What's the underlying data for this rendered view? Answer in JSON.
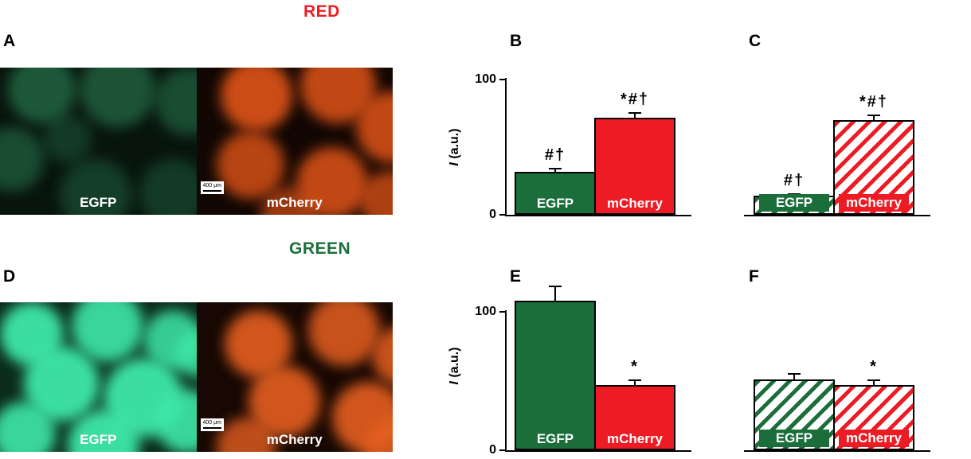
{
  "figure": {
    "title_red": "RED",
    "title_green": "GREEN",
    "panel_labels": [
      "A",
      "B",
      "C",
      "D",
      "E",
      "F"
    ],
    "colors": {
      "egfp_green": "#1b6e3a",
      "mcherry_red": "#ed1c24",
      "red_title": "#ed1c24",
      "green_title": "#1b6e3a"
    }
  },
  "microscopy": {
    "panel_a": {
      "left_label": "EGFP",
      "right_label": "mCherry",
      "scale_bar": "400 μm"
    },
    "panel_d": {
      "left_label": "EGFP",
      "right_label": "mCherry",
      "scale_bar": "400 μm"
    }
  },
  "chart_data": [
    {
      "id": "B",
      "type": "bar",
      "categories": [
        "EGFP",
        "mCherry"
      ],
      "values": [
        32,
        72
      ],
      "errors": [
        3,
        4
      ],
      "annotations": [
        "#†",
        "*#†"
      ],
      "ylabel_var": "I",
      "ylabel_unit": "(a.u.)",
      "yticks": [
        0,
        100
      ],
      "ylim": [
        0,
        100
      ],
      "bar_styles": [
        "solid-green",
        "solid-red"
      ],
      "legend_position": "none",
      "grid": false
    },
    {
      "id": "C",
      "type": "bar",
      "categories": [
        "EGFP",
        "mCherry"
      ],
      "values": [
        14,
        70
      ],
      "errors": [
        2,
        4
      ],
      "annotations": [
        "#†",
        "*#†"
      ],
      "ylabel_var": "",
      "ylabel_unit": "",
      "yticks": [],
      "ylim": [
        0,
        100
      ],
      "bar_styles": [
        "hatched-green",
        "hatched-red"
      ],
      "legend_position": "none",
      "grid": false
    },
    {
      "id": "E",
      "type": "bar",
      "categories": [
        "EGFP",
        "mCherry"
      ],
      "values": [
        108,
        47
      ],
      "errors": [
        11,
        4
      ],
      "annotations": [
        "",
        "*"
      ],
      "ylabel_var": "I",
      "ylabel_unit": "(a.u.)",
      "yticks": [
        0,
        100
      ],
      "ylim": [
        0,
        122
      ],
      "bar_styles": [
        "solid-green",
        "solid-red"
      ],
      "legend_position": "none",
      "grid": false
    },
    {
      "id": "F",
      "type": "bar",
      "categories": [
        "EGFP",
        "mCherry"
      ],
      "values": [
        51,
        47
      ],
      "errors": [
        5,
        4
      ],
      "annotations": [
        "",
        "*"
      ],
      "ylabel_var": "",
      "ylabel_unit": "",
      "yticks": [],
      "ylim": [
        0,
        122
      ],
      "bar_styles": [
        "hatched-green",
        "hatched-red"
      ],
      "legend_position": "none",
      "grid": false
    }
  ]
}
